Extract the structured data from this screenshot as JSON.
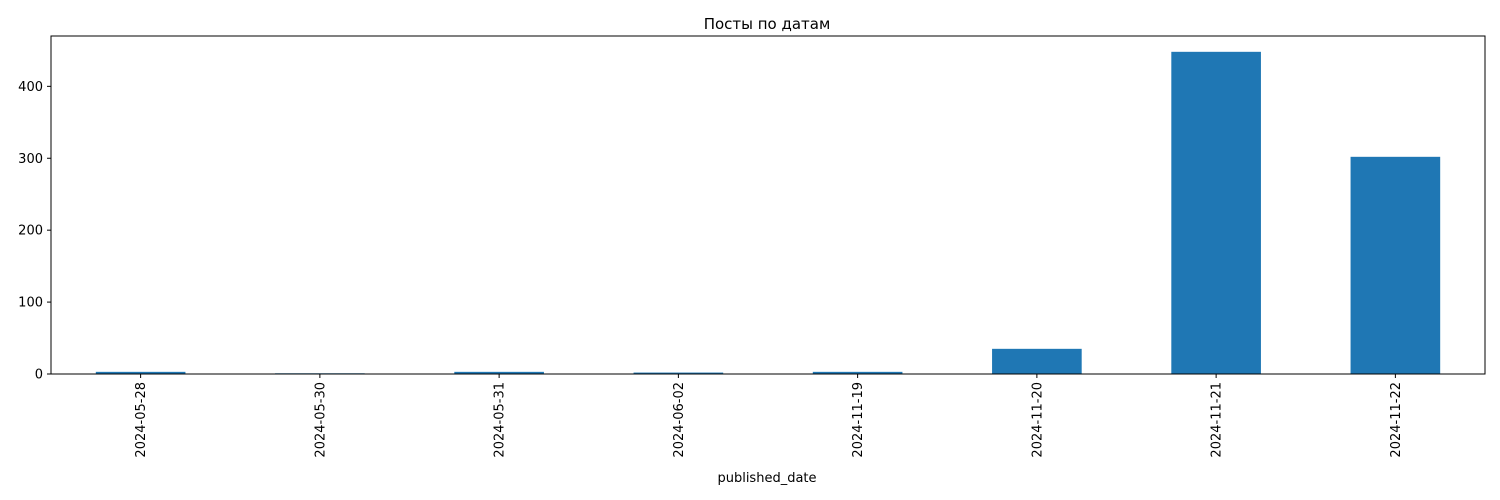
{
  "chart_data": {
    "type": "bar",
    "title": "Посты по датам",
    "xlabel": "published_date",
    "ylabel": "",
    "categories": [
      "2024-05-28",
      "2024-05-30",
      "2024-05-31",
      "2024-06-02",
      "2024-11-19",
      "2024-11-20",
      "2024-11-21",
      "2024-11-22"
    ],
    "values": [
      3,
      1,
      3,
      2,
      3,
      35,
      448,
      302
    ],
    "ylim": [
      0,
      470
    ],
    "yticks": [
      0,
      100,
      200,
      300,
      400
    ],
    "grid": false,
    "bar_color": "#1f77b4"
  }
}
